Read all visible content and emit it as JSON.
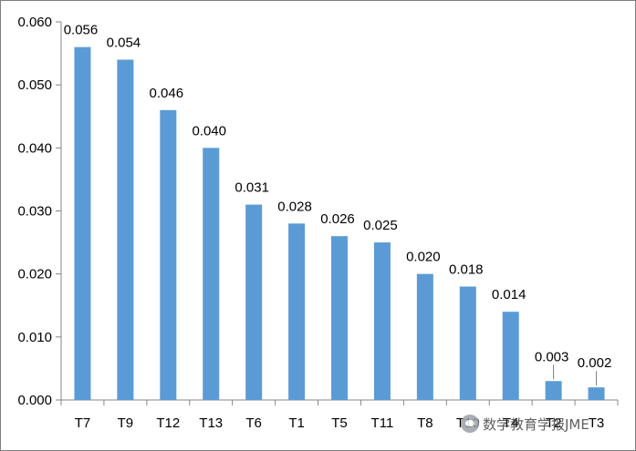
{
  "chart_data": {
    "type": "bar",
    "title": "",
    "xlabel": "",
    "ylabel": "",
    "categories": [
      "T7",
      "T9",
      "T12",
      "T13",
      "T6",
      "T1",
      "T5",
      "T11",
      "T8",
      "T10",
      "T4",
      "T2",
      "T3"
    ],
    "values": [
      0.056,
      0.054,
      0.046,
      0.04,
      0.031,
      0.028,
      0.026,
      0.025,
      0.02,
      0.018,
      0.014,
      0.003,
      0.002
    ],
    "value_labels": [
      "0.056",
      "0.054",
      "0.046",
      "0.040",
      "0.031",
      "0.028",
      "0.026",
      "0.025",
      "0.020",
      "0.018",
      "0.014",
      "0.003",
      "0.002"
    ],
    "ylim": [
      0,
      0.06
    ],
    "yticks": [
      0.0,
      0.01,
      0.02,
      0.03,
      0.04,
      0.05,
      0.06
    ],
    "ytick_labels": [
      "0.000",
      "0.010",
      "0.020",
      "0.030",
      "0.040",
      "0.050",
      "0.060"
    ],
    "grid": false,
    "legend": "none",
    "bar_color": "#5b9bd5",
    "axis_color": "#868686"
  },
  "watermark": {
    "text": "数学教育学报JME",
    "icon": "wechat-logo-icon"
  }
}
